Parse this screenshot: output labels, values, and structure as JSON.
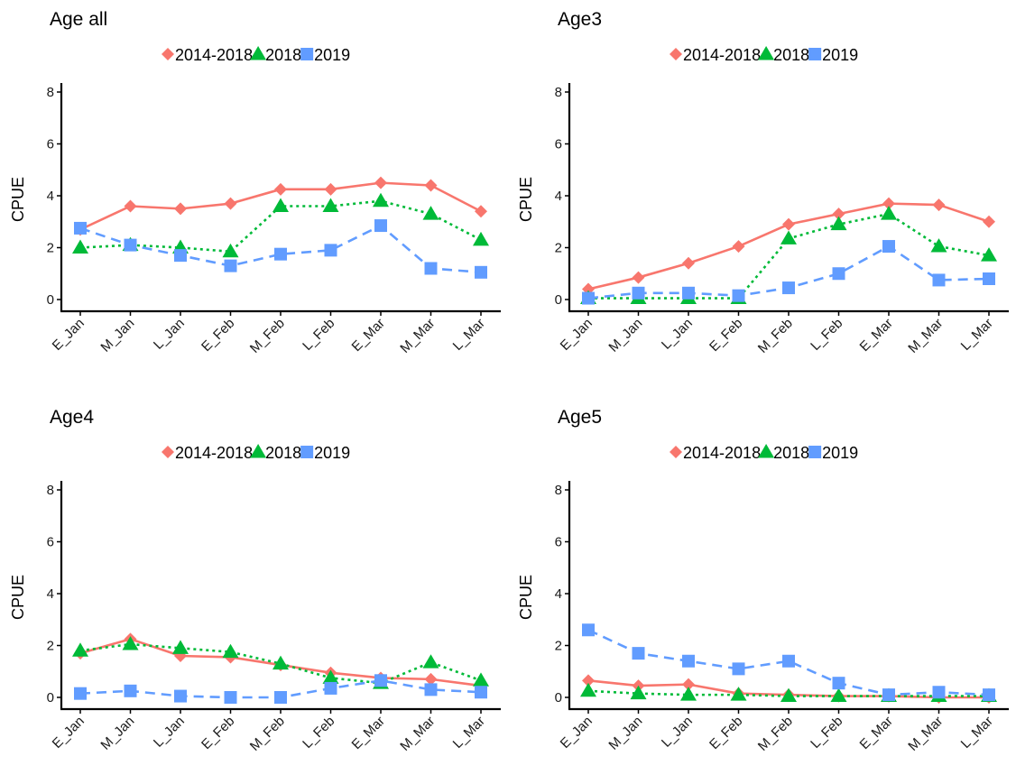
{
  "chart_data": [
    {
      "type": "line",
      "title": "Age all",
      "ylabel": "CPUE",
      "xlabel": "",
      "ylim": [
        0,
        8
      ],
      "yticks": [
        0,
        2,
        4,
        6,
        8
      ],
      "categories": [
        "E_Jan",
        "M_Jan",
        "L_Jan",
        "E_Feb",
        "M_Feb",
        "L_Feb",
        "E_Mar",
        "M_Mar",
        "L_Mar"
      ],
      "legend_position": "top",
      "grid": false,
      "series": [
        {
          "name": "2014-2018",
          "color": "#F8766D",
          "marker": "diamond",
          "line": "solid",
          "values": [
            2.7,
            3.6,
            3.5,
            3.7,
            4.25,
            4.25,
            4.5,
            4.4,
            3.4
          ]
        },
        {
          "name": "2018",
          "color": "#00BA38",
          "marker": "triangle",
          "line": "dotted",
          "values": [
            2.0,
            2.1,
            2.0,
            1.85,
            3.6,
            3.6,
            3.8,
            3.3,
            2.3
          ]
        },
        {
          "name": "2019",
          "color": "#619CFF",
          "marker": "square",
          "line": "dashed",
          "values": [
            2.75,
            2.1,
            1.7,
            1.3,
            1.75,
            1.9,
            2.85,
            1.2,
            1.05
          ]
        }
      ]
    },
    {
      "type": "line",
      "title": "Age3",
      "ylabel": "CPUE",
      "xlabel": "",
      "ylim": [
        0,
        8
      ],
      "yticks": [
        0,
        2,
        4,
        6,
        8
      ],
      "categories": [
        "E_Jan",
        "M_Jan",
        "L_Jan",
        "E_Feb",
        "M_Feb",
        "L_Feb",
        "E_Mar",
        "M_Mar",
        "L_Mar"
      ],
      "legend_position": "top",
      "grid": false,
      "series": [
        {
          "name": "2014-2018",
          "color": "#F8766D",
          "marker": "diamond",
          "line": "solid",
          "values": [
            0.4,
            0.85,
            1.4,
            2.05,
            2.9,
            3.3,
            3.7,
            3.65,
            3.0
          ]
        },
        {
          "name": "2018",
          "color": "#00BA38",
          "marker": "triangle",
          "line": "dotted",
          "values": [
            0.05,
            0.05,
            0.05,
            0.05,
            2.35,
            2.9,
            3.3,
            2.05,
            1.7
          ]
        },
        {
          "name": "2019",
          "color": "#619CFF",
          "marker": "square",
          "line": "dashed",
          "values": [
            0.05,
            0.25,
            0.25,
            0.15,
            0.45,
            1.0,
            2.05,
            0.75,
            0.8
          ]
        }
      ]
    },
    {
      "type": "line",
      "title": "Age4",
      "ylabel": "CPUE",
      "xlabel": "",
      "ylim": [
        0,
        8
      ],
      "yticks": [
        0,
        2,
        4,
        6,
        8
      ],
      "categories": [
        "E_Jan",
        "M_Jan",
        "L_Jan",
        "E_Feb",
        "M_Feb",
        "L_Feb",
        "E_Mar",
        "M_Mar",
        "L_Mar"
      ],
      "legend_position": "top",
      "grid": false,
      "series": [
        {
          "name": "2014-2018",
          "color": "#F8766D",
          "marker": "diamond",
          "line": "solid",
          "values": [
            1.7,
            2.25,
            1.6,
            1.55,
            1.25,
            0.95,
            0.75,
            0.7,
            0.45
          ]
        },
        {
          "name": "2018",
          "color": "#00BA38",
          "marker": "triangle",
          "line": "dotted",
          "values": [
            1.8,
            2.05,
            1.9,
            1.75,
            1.3,
            0.75,
            0.55,
            1.35,
            0.65
          ]
        },
        {
          "name": "2019",
          "color": "#619CFF",
          "marker": "square",
          "line": "dashed",
          "values": [
            0.15,
            0.25,
            0.05,
            0.0,
            0.0,
            0.35,
            0.65,
            0.3,
            0.2
          ]
        }
      ]
    },
    {
      "type": "line",
      "title": "Age5",
      "ylabel": "CPUE",
      "xlabel": "",
      "ylim": [
        0,
        8
      ],
      "yticks": [
        0,
        2,
        4,
        6,
        8
      ],
      "categories": [
        "E_Jan",
        "M_Jan",
        "L_Jan",
        "E_Feb",
        "M_Feb",
        "L_Feb",
        "E_Mar",
        "M_Mar",
        "L_Mar"
      ],
      "legend_position": "top",
      "grid": false,
      "series": [
        {
          "name": "2014-2018",
          "color": "#F8766D",
          "marker": "diamond",
          "line": "solid",
          "values": [
            0.65,
            0.45,
            0.5,
            0.15,
            0.1,
            0.05,
            0.05,
            0.0,
            0.0
          ]
        },
        {
          "name": "2018",
          "color": "#00BA38",
          "marker": "triangle",
          "line": "dotted",
          "values": [
            0.25,
            0.15,
            0.1,
            0.1,
            0.05,
            0.05,
            0.05,
            0.05,
            0.05
          ]
        },
        {
          "name": "2019",
          "color": "#619CFF",
          "marker": "square",
          "line": "dashed",
          "values": [
            2.6,
            1.7,
            1.4,
            1.1,
            1.4,
            0.55,
            0.1,
            0.2,
            0.1
          ]
        }
      ]
    }
  ]
}
